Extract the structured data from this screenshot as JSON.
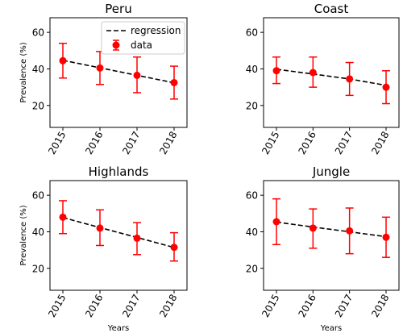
{
  "colors": {
    "data": "#ff0000",
    "regression": "#000000",
    "axis": "#000000",
    "background": "#ffffff"
  },
  "legend": {
    "regression_label": "regression",
    "data_label": "data",
    "placement": "upper right of first panel"
  },
  "chart_data": [
    {
      "type": "line",
      "title": "Peru",
      "xlabel": "",
      "ylabel": "Prevalence (%)",
      "categories": [
        "2015",
        "2016",
        "2017",
        "2018"
      ],
      "ylim": [
        8,
        68
      ],
      "yticks": [
        "20",
        "40",
        "60"
      ],
      "series": [
        {
          "name": "data",
          "values": [
            44.5,
            40.5,
            36.5,
            32.5
          ],
          "err_low": [
            35.0,
            31.5,
            27.0,
            23.5
          ],
          "err_high": [
            54.0,
            49.5,
            46.5,
            41.5
          ]
        },
        {
          "name": "regression",
          "values": [
            44.7,
            40.6,
            36.5,
            32.4
          ]
        }
      ]
    },
    {
      "type": "line",
      "title": "Coast",
      "xlabel": "",
      "ylabel": "",
      "categories": [
        "2015",
        "2016",
        "2017",
        "2018"
      ],
      "ylim": [
        8,
        68
      ],
      "yticks": [
        "20",
        "40",
        "60"
      ],
      "series": [
        {
          "name": "data",
          "values": [
            39.0,
            38.0,
            34.5,
            30.0
          ],
          "err_low": [
            32.0,
            30.0,
            25.5,
            21.0
          ],
          "err_high": [
            46.5,
            46.5,
            43.5,
            39.0
          ]
        },
        {
          "name": "regression",
          "values": [
            39.8,
            37.2,
            34.5,
            31.0
          ]
        }
      ]
    },
    {
      "type": "line",
      "title": "Highlands",
      "xlabel": "Years",
      "ylabel": "Prevalence (%)",
      "categories": [
        "2015",
        "2016",
        "2017",
        "2018"
      ],
      "ylim": [
        8,
        68
      ],
      "yticks": [
        "20",
        "40",
        "60"
      ],
      "series": [
        {
          "name": "data",
          "values": [
            48.0,
            42.0,
            36.5,
            31.5
          ],
          "err_low": [
            39.0,
            32.5,
            27.5,
            24.0
          ],
          "err_high": [
            57.0,
            52.0,
            45.0,
            39.5
          ]
        },
        {
          "name": "regression",
          "values": [
            47.8,
            42.3,
            36.9,
            31.4
          ]
        }
      ]
    },
    {
      "type": "line",
      "title": "Jungle",
      "xlabel": "Years",
      "ylabel": "",
      "categories": [
        "2015",
        "2016",
        "2017",
        "2018"
      ],
      "ylim": [
        8,
        68
      ],
      "yticks": [
        "20",
        "40",
        "60"
      ],
      "series": [
        {
          "name": "data",
          "values": [
            45.5,
            42.0,
            40.5,
            37.0
          ],
          "err_low": [
            33.0,
            31.0,
            28.0,
            26.0
          ],
          "err_high": [
            58.0,
            52.5,
            53.0,
            48.0
          ]
        },
        {
          "name": "regression",
          "values": [
            45.3,
            42.6,
            40.0,
            37.3
          ]
        }
      ]
    }
  ]
}
